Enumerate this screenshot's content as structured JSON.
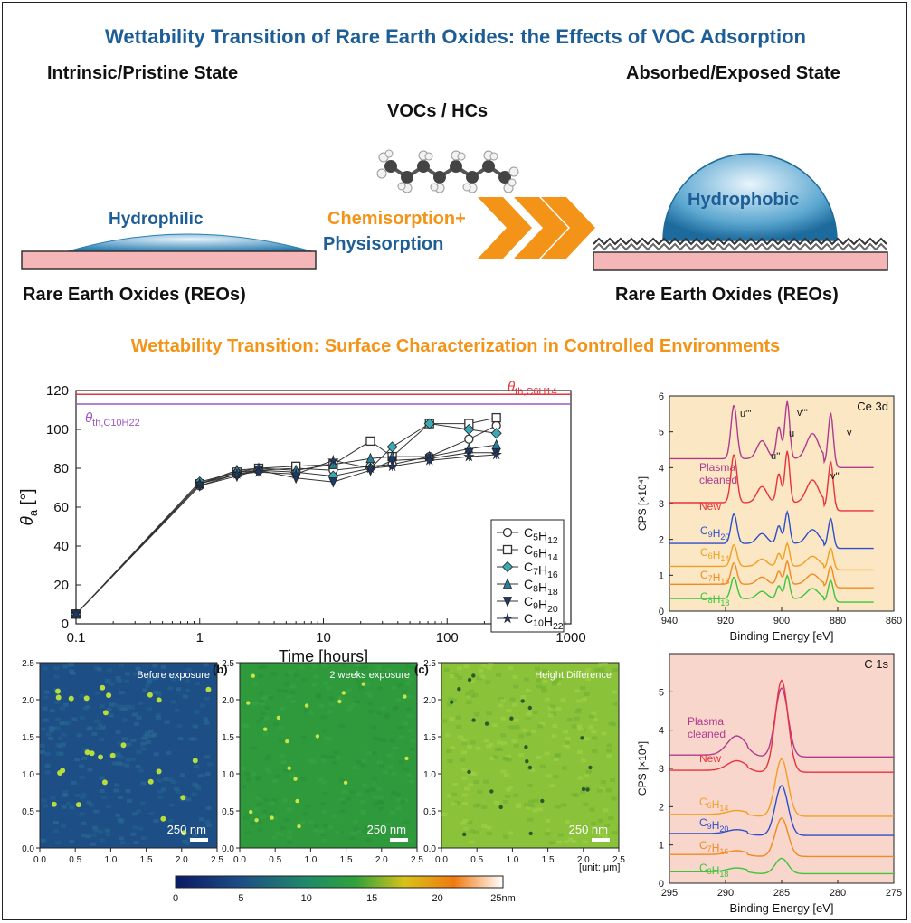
{
  "header": {
    "title": "Wettability Transition of Rare Earth Oxides: the Effects of  VOC Adsorption",
    "left_state": "Intrinsic/Pristine State",
    "right_state": "Absorbed/Exposed State",
    "vocs": "VOCs / HCs",
    "process_line1": "Chemisorption+",
    "process_line2": "Physisorption",
    "hydrophilic": "Hydrophilic",
    "hydrophobic": "Hydrophobic",
    "substrate_left": "Rare Earth Oxides (REOs)",
    "substrate_right": "Rare Earth Oxides (REOs)",
    "section_title": "Wettability Transition: Surface Characterization in Controlled Environments"
  },
  "colors": {
    "title_blue": "#1e5e96",
    "accent_orange": "#f39418",
    "substrate_pink": "#f4b6b6",
    "droplet_blue": "#2c7fb3"
  },
  "chart_data": [
    {
      "type": "line",
      "xlabel": "Time [hours]",
      "ylabel": "θa [°]",
      "xscale": "log",
      "xlim": [
        0.1,
        1000
      ],
      "ylim": [
        0,
        120
      ],
      "xticks": [
        "0.1",
        "1",
        "10",
        "100",
        "1000"
      ],
      "yticks": [
        "0",
        "20",
        "40",
        "60",
        "80",
        "100",
        "120"
      ],
      "reference_lines": [
        {
          "label": "θth,C6H14",
          "y": 118,
          "color": "#e8323c"
        },
        {
          "label": "θth,C10H22",
          "y": 113,
          "color": "#9b59c6"
        }
      ],
      "legend_position": "right",
      "x": [
        0.1,
        1,
        2,
        3,
        6,
        12,
        24,
        36,
        72,
        150,
        250
      ],
      "series": [
        {
          "name": "C5H12",
          "marker": "circle",
          "color": "#333333",
          "values": [
            5,
            71,
            77,
            79,
            80,
            79,
            81,
            82,
            86,
            95,
            102
          ]
        },
        {
          "name": "C6H14",
          "marker": "square",
          "color": "#333333",
          "values": [
            5,
            72,
            78,
            80,
            81,
            82,
            94,
            86,
            103,
            103,
            106
          ]
        },
        {
          "name": "C7H16",
          "marker": "diamond",
          "color": "#3aa9b4",
          "values": [
            5,
            73,
            78,
            79,
            78,
            76,
            80,
            91,
            103,
            100,
            98
          ]
        },
        {
          "name": "C8H18",
          "marker": "triangle-up",
          "color": "#2a7f9e",
          "values": [
            5,
            72,
            79,
            80,
            79,
            82,
            85,
            86,
            86,
            90,
            92
          ]
        },
        {
          "name": "C9H20",
          "marker": "triangle-down",
          "color": "#1f3a68",
          "values": [
            5,
            71,
            76,
            79,
            75,
            73,
            79,
            84,
            85,
            88,
            88
          ]
        },
        {
          "name": "C10H22",
          "marker": "star",
          "color": "#1f3a68",
          "values": [
            5,
            72,
            77,
            78,
            77,
            84,
            80,
            81,
            84,
            86,
            87
          ]
        }
      ]
    },
    {
      "type": "line",
      "panel": "Ce 3d",
      "xlabel": "Binding Energy [eV]",
      "ylabel": "CPS [×10⁴]",
      "xlim": [
        940,
        860
      ],
      "ylim": [
        0,
        6
      ],
      "xticks": [
        "940",
        "920",
        "900",
        "880",
        "860"
      ],
      "yticks": [
        "0",
        "1",
        "2",
        "3",
        "4",
        "5",
        "6"
      ],
      "peak_labels": [
        "u'''",
        "u''",
        "u",
        "v'''",
        "v''",
        "v"
      ],
      "series": [
        {
          "name": "Plasma cleaned",
          "color": "#b03a8e",
          "offset": 4.0
        },
        {
          "name": "New",
          "color": "#e8323c",
          "offset": 2.8
        },
        {
          "name": "C9H20",
          "color": "#2e4fc9",
          "offset": 1.75
        },
        {
          "name": "C6H14",
          "color": "#f0a020",
          "offset": 1.15
        },
        {
          "name": "C7H16",
          "color": "#f08a20",
          "offset": 0.65
        },
        {
          "name": "C8H18",
          "color": "#3cc43c",
          "offset": 0.25
        }
      ]
    },
    {
      "type": "line",
      "panel": "C 1s",
      "xlabel": "Binding Energy [eV]",
      "ylabel": "CPS [×10⁴]",
      "xlim": [
        295,
        275
      ],
      "ylim": [
        0,
        6
      ],
      "xticks": [
        "295",
        "290",
        "285",
        "280",
        "275"
      ],
      "yticks": [
        "0",
        "1",
        "2",
        "3",
        "4",
        "5"
      ],
      "series": [
        {
          "name": "Plasma cleaned",
          "color": "#b03a8e",
          "offset": 3.3
        },
        {
          "name": "New",
          "color": "#e8323c",
          "offset": 2.9
        },
        {
          "name": "C6H14",
          "color": "#f0a020",
          "offset": 1.75
        },
        {
          "name": "C9H20",
          "color": "#2e4fc9",
          "offset": 1.25
        },
        {
          "name": "C7H16",
          "color": "#f08a20",
          "offset": 0.7
        },
        {
          "name": "C8H18",
          "color": "#3cc43c",
          "offset": 0.25
        }
      ]
    }
  ],
  "afm": {
    "panels": [
      {
        "letter": "",
        "label": "Before exposure"
      },
      {
        "letter": "(b)",
        "label": "2 weeks exposure"
      },
      {
        "letter": "(c)",
        "label": "Height Difference"
      }
    ],
    "scalebar": "250 nm",
    "ticks": [
      "0.0",
      "0.5",
      "1.0",
      "1.5",
      "2.0",
      "2.5"
    ],
    "unit": "[unit: μm]",
    "colorbar_ticks": [
      "0",
      "5",
      "10",
      "15",
      "20"
    ],
    "colorbar_max": "25nm"
  }
}
